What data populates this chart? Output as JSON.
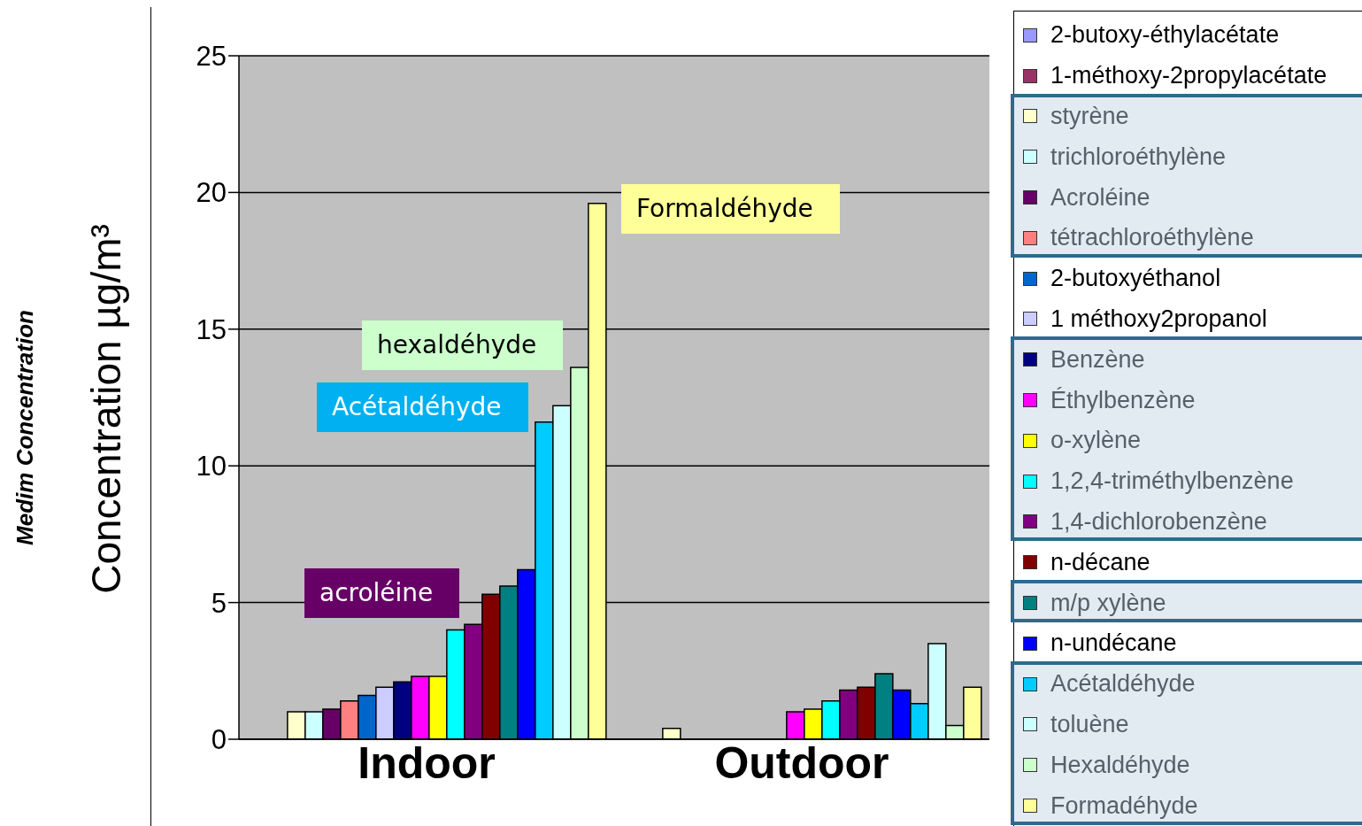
{
  "chart_data": {
    "type": "bar",
    "title": "Medim Concentration",
    "ylabel": "Concentration µg/m³",
    "categories": [
      "Indoor",
      "Outdoor"
    ],
    "ylim": [
      0,
      25
    ],
    "yticks": [
      0,
      5,
      10,
      15,
      20,
      25
    ],
    "grid": "y",
    "legend": "right",
    "series": [
      {
        "name": "2-butoxy-éthylacétate",
        "color": "#9999ff",
        "values": [
          null,
          null
        ]
      },
      {
        "name": "1-méthoxy-2propylacétate",
        "color": "#993366",
        "values": [
          null,
          null
        ]
      },
      {
        "name": "styrène",
        "color": "#ffffcc",
        "values": [
          1.0,
          0.4
        ]
      },
      {
        "name": "trichloroéthylène",
        "color": "#ccffff",
        "values": [
          1.0,
          null
        ]
      },
      {
        "name": "Acroléine",
        "color": "#660066",
        "values": [
          1.1,
          null
        ]
      },
      {
        "name": "tétrachloroéthylène",
        "color": "#ff8080",
        "values": [
          1.4,
          null
        ]
      },
      {
        "name": "2-butoxyéthanol",
        "color": "#0066cc",
        "values": [
          1.6,
          null
        ]
      },
      {
        "name": "1 méthoxy2propanol",
        "color": "#ccccff",
        "values": [
          1.9,
          null
        ]
      },
      {
        "name": "Benzène",
        "color": "#000080",
        "values": [
          2.1,
          null
        ]
      },
      {
        "name": "Éthylbenzène",
        "color": "#ff00ff",
        "values": [
          2.3,
          1.0
        ]
      },
      {
        "name": "o-xylène",
        "color": "#ffff00",
        "values": [
          2.3,
          1.1
        ]
      },
      {
        "name": "1,2,4-triméthylbenzène",
        "color": "#00ffff",
        "values": [
          4.0,
          1.4
        ]
      },
      {
        "name": "1,4-dichlorobenzène",
        "color": "#800080",
        "values": [
          4.2,
          1.8
        ]
      },
      {
        "name": "n-décane",
        "color": "#800000",
        "values": [
          5.3,
          1.9
        ]
      },
      {
        "name": "m/p xylène",
        "color": "#008080",
        "values": [
          5.6,
          2.4
        ]
      },
      {
        "name": "n-undécane",
        "color": "#0000ff",
        "values": [
          6.2,
          1.8
        ]
      },
      {
        "name": "Acétaldéhyde",
        "color": "#00ccff",
        "values": [
          11.6,
          1.3
        ]
      },
      {
        "name": "toluène",
        "color": "#ccffff",
        "values": [
          12.2,
          3.5
        ]
      },
      {
        "name": "Hexaldéhyde",
        "color": "#ccffcc",
        "values": [
          13.6,
          0.5
        ]
      },
      {
        "name": "Formadéhyde",
        "color": "#ffff99",
        "values": [
          19.6,
          1.9
        ]
      }
    ],
    "annotations": [
      "Formaldéhyde",
      "hexaldéhyde",
      "Acétaldéhyde",
      "acroléine"
    ]
  }
}
